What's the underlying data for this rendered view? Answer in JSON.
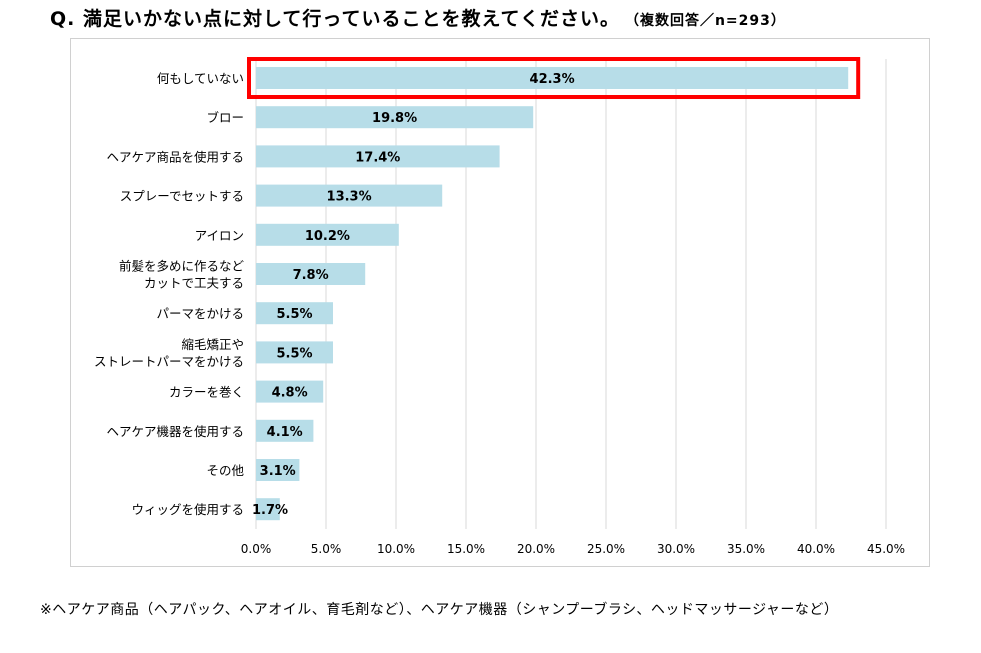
{
  "title": "Q. 満足いかない点に対して行っていることを教えてください。",
  "sample": "（複数回答／n=293）",
  "footnote": "※ヘアケア商品（ヘアパック、ヘアオイル、育毛剤など）、ヘアケア機器（シャンプーブラシ、ヘッドマッサージャーなど）",
  "chart_data": {
    "type": "bar",
    "orientation": "horizontal",
    "title": "Q. 満足いかない点に対して行っていることを教えてください。",
    "categories": [
      [
        "何もしていない"
      ],
      [
        "ブロー"
      ],
      [
        "ヘアケア商品を使用する"
      ],
      [
        "スプレーでセットする"
      ],
      [
        "アイロン"
      ],
      [
        "前髪を多めに作るなど",
        "カットで工夫する"
      ],
      [
        "パーマをかける"
      ],
      [
        "縮毛矯正や",
        "ストレートパーマをかける"
      ],
      [
        "カラーを巻く"
      ],
      [
        "ヘアケア機器を使用する"
      ],
      [
        "その他"
      ],
      [
        "ウィッグを使用する"
      ]
    ],
    "values": [
      42.3,
      19.8,
      17.4,
      13.3,
      10.2,
      7.8,
      5.5,
      5.5,
      4.8,
      4.1,
      3.1,
      1.7
    ],
    "xlim": [
      0,
      45
    ],
    "xticks": [
      "0.0%",
      "5.0%",
      "10.0%",
      "15.0%",
      "20.0%",
      "25.0%",
      "30.0%",
      "35.0%",
      "40.0%",
      "45.0%"
    ],
    "grid": true,
    "bar_color": "#b7dde8",
    "highlight_color": "#ff0000",
    "highlight_index": 0
  }
}
